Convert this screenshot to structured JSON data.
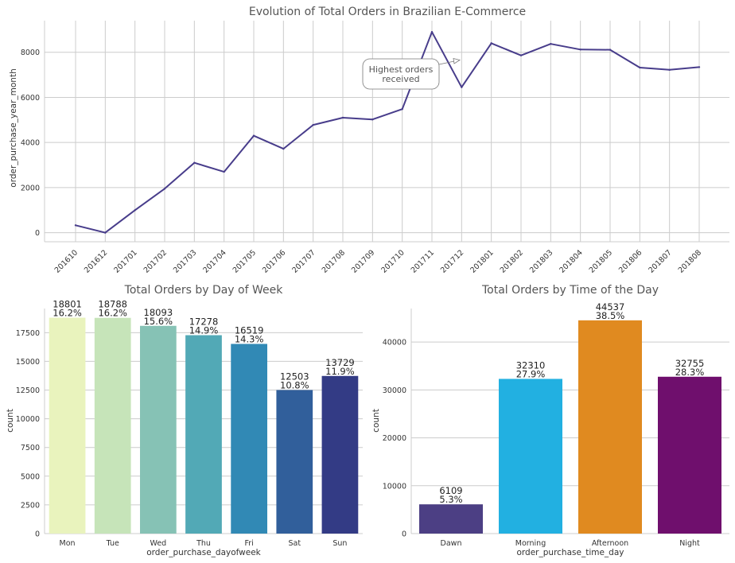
{
  "chart_data": [
    {
      "type": "line",
      "title": "Evolution of Total Orders in Brazilian E-Commerce",
      "xlabel": "",
      "ylabel": "order_purchase_year_month",
      "x": [
        "201610",
        "201612",
        "201701",
        "201702",
        "201703",
        "201704",
        "201705",
        "201706",
        "201707",
        "201708",
        "201709",
        "201710",
        "201711",
        "201712",
        "201801",
        "201802",
        "201803",
        "201804",
        "201805",
        "201806",
        "201807",
        "201808"
      ],
      "values": [
        330,
        1,
        1000,
        1950,
        3100,
        2700,
        4300,
        3720,
        4780,
        5100,
        5020,
        5480,
        8900,
        6450,
        8400,
        7860,
        8370,
        8120,
        8110,
        7320,
        7220,
        7340
      ],
      "ylim": [
        -400,
        9400
      ],
      "yticks": [
        0,
        2000,
        4000,
        6000,
        8000
      ],
      "color": "#483d8b",
      "annotation": {
        "line1": "Highest orders",
        "line2": "received"
      },
      "grid": true
    },
    {
      "type": "bar",
      "title": "Total Orders by Day of Week",
      "xlabel": "order_purchase_dayofweek",
      "ylabel": "count",
      "categories": [
        "Mon",
        "Tue",
        "Wed",
        "Thu",
        "Fri",
        "Sat",
        "Sun"
      ],
      "values": [
        18801,
        18788,
        18093,
        17278,
        16519,
        12503,
        13729
      ],
      "percents": [
        "16.2%",
        "16.2%",
        "15.6%",
        "14.9%",
        "14.3%",
        "10.8%",
        "11.9%"
      ],
      "colors": [
        "#e9f3bd",
        "#c6e4b9",
        "#86c2b5",
        "#52a9b6",
        "#3189b5",
        "#315f9b",
        "#333b85"
      ],
      "ylim": [
        0,
        19600
      ],
      "yticks": [
        0,
        2500,
        5000,
        7500,
        10000,
        12500,
        15000,
        17500
      ],
      "grid": true
    },
    {
      "type": "bar",
      "title": "Total Orders by Time of the Day",
      "xlabel": "order_purchase_time_day",
      "ylabel": "count",
      "categories": [
        "Dawn",
        "Morning",
        "Afternoon",
        "Night"
      ],
      "values": [
        6109,
        32310,
        44537,
        32755
      ],
      "percents": [
        "5.3%",
        "27.9%",
        "38.5%",
        "28.3%"
      ],
      "colors": [
        "#4c3f84",
        "#22b0e1",
        "#e08a20",
        "#6f0f6d"
      ],
      "ylim": [
        0,
        47000
      ],
      "yticks": [
        0,
        10000,
        20000,
        30000,
        40000
      ],
      "grid": true
    }
  ]
}
